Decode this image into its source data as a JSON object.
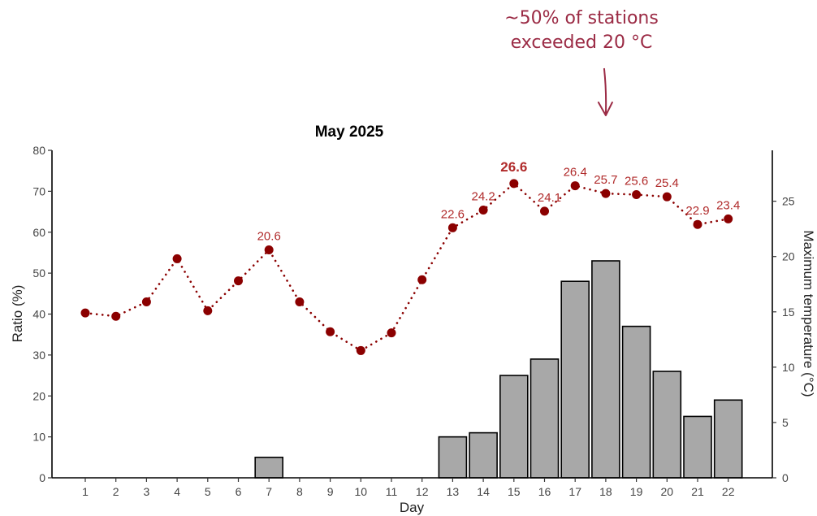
{
  "annotation": {
    "line1": "~50% of stations",
    "line2": "exceeded 20 °C",
    "day": 18,
    "color": "#9b2b45"
  },
  "chart_data": {
    "type": "bar+line",
    "title": "May 2025",
    "xlabel": "Day",
    "ylabel_left": "Ratio (%)",
    "ylabel_right": "Maximum temperature (°C)",
    "categories": [
      "1",
      "2",
      "3",
      "4",
      "5",
      "6",
      "7",
      "8",
      "9",
      "10",
      "11",
      "12",
      "13",
      "14",
      "15",
      "16",
      "17",
      "18",
      "19",
      "20",
      "21",
      "22"
    ],
    "ylim_left": [
      0,
      80
    ],
    "yticks_left": [
      0,
      10,
      20,
      30,
      40,
      50,
      60,
      70,
      80
    ],
    "ylim_right": [
      0,
      29.6
    ],
    "yticks_right": [
      0,
      5,
      10,
      15,
      20,
      25
    ],
    "grid": false,
    "bars": {
      "axis": "left",
      "color": "#a8a8a8",
      "edge_color": "#000000",
      "values": [
        0,
        0,
        0,
        0,
        0,
        0,
        5,
        0,
        0,
        0,
        0,
        0,
        10,
        11,
        25,
        29,
        48,
        53,
        37,
        26,
        15,
        19
      ]
    },
    "line": {
      "axis": "right",
      "color": "#8b0000",
      "style": "dotted",
      "values": [
        14.9,
        14.6,
        15.9,
        19.8,
        15.1,
        17.8,
        20.6,
        15.9,
        13.2,
        11.5,
        13.1,
        17.9,
        22.6,
        24.2,
        26.6,
        24.1,
        26.4,
        25.7,
        25.6,
        25.4,
        22.9,
        23.4
      ],
      "labels": [
        {
          "day": 7,
          "text": "20.6",
          "bold": false
        },
        {
          "day": 13,
          "text": "22.6",
          "bold": false
        },
        {
          "day": 14,
          "text": "24.2",
          "bold": false
        },
        {
          "day": 15,
          "text": "26.6",
          "bold": true
        },
        {
          "day": 16,
          "text": "24.1",
          "bold": false
        },
        {
          "day": 17,
          "text": "26.4",
          "bold": false
        },
        {
          "day": 18,
          "text": "25.7",
          "bold": false
        },
        {
          "day": 19,
          "text": "25.6",
          "bold": false
        },
        {
          "day": 20,
          "text": "25.4",
          "bold": false
        },
        {
          "day": 21,
          "text": "22.9",
          "bold": false
        },
        {
          "day": 22,
          "text": "23.4",
          "bold": false
        }
      ]
    }
  }
}
